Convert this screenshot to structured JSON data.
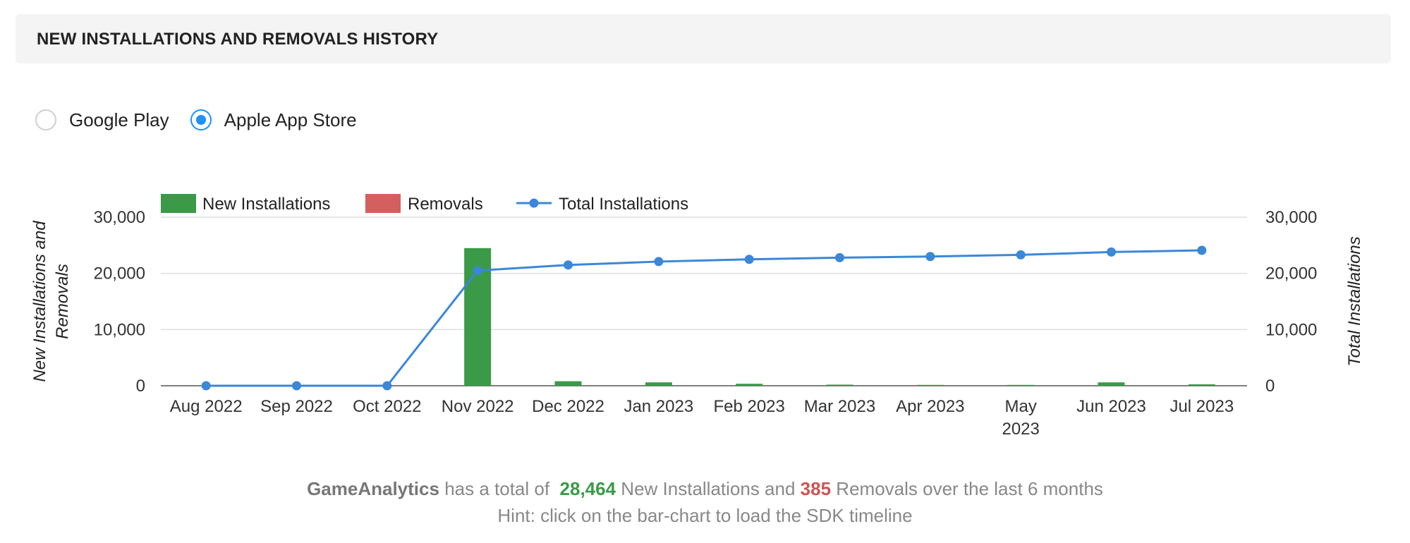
{
  "header": {
    "title": "NEW INSTALLATIONS AND REMOVALS HISTORY"
  },
  "store_selector": {
    "options": [
      {
        "label": "Google Play",
        "selected": false
      },
      {
        "label": "Apple App Store",
        "selected": true
      }
    ]
  },
  "summary": {
    "brand": "GameAnalytics",
    "pre": "has a total of",
    "new_installs": "28,464",
    "mid": "New Installations and",
    "removals": "385",
    "post": "Removals over the last 6 months",
    "hint": "Hint: click on the bar-chart to load the SDK timeline"
  },
  "chart_data": {
    "type": "bar",
    "categories": [
      [
        "Aug 2022"
      ],
      [
        "Sep 2022"
      ],
      [
        "Oct 2022"
      ],
      [
        "Nov 2022"
      ],
      [
        "Dec 2022"
      ],
      [
        "Jan 2023"
      ],
      [
        "Feb 2023"
      ],
      [
        "Mar 2023"
      ],
      [
        "Apr 2023"
      ],
      [
        "May",
        "2023"
      ],
      [
        "Jun 2023"
      ],
      [
        "Jul 2023"
      ]
    ],
    "series": [
      {
        "name": "New Installations",
        "kind": "bar",
        "axis": "left",
        "color": "#3a9a48",
        "values": [
          0,
          0,
          0,
          24500,
          800,
          600,
          350,
          200,
          150,
          150,
          600,
          250
        ]
      },
      {
        "name": "Removals",
        "kind": "bar",
        "axis": "left",
        "color": "#d45f5f",
        "values": [
          0,
          0,
          0,
          0,
          0,
          0,
          0,
          0,
          0,
          0,
          0,
          0
        ]
      },
      {
        "name": "Total Installations",
        "kind": "line",
        "axis": "right",
        "color": "#3b87d8",
        "values": [
          0,
          0,
          0,
          20500,
          21500,
          22100,
          22500,
          22800,
          23000,
          23300,
          23800,
          24100
        ]
      }
    ],
    "y_left": {
      "label": [
        "New Installations and",
        "Removals"
      ],
      "min": 0,
      "max": 30000,
      "ticks": [
        0,
        10000,
        20000,
        30000
      ],
      "tick_labels": [
        "0",
        "10,000",
        "20,000",
        "30,000"
      ]
    },
    "y_right": {
      "label": [
        "Total Installations"
      ],
      "min": 0,
      "max": 30000,
      "ticks": [
        0,
        10000,
        20000,
        30000
      ],
      "tick_labels": [
        "0",
        "10,000",
        "20,000",
        "30,000"
      ]
    },
    "grid": true,
    "legend_position": "top-left"
  }
}
